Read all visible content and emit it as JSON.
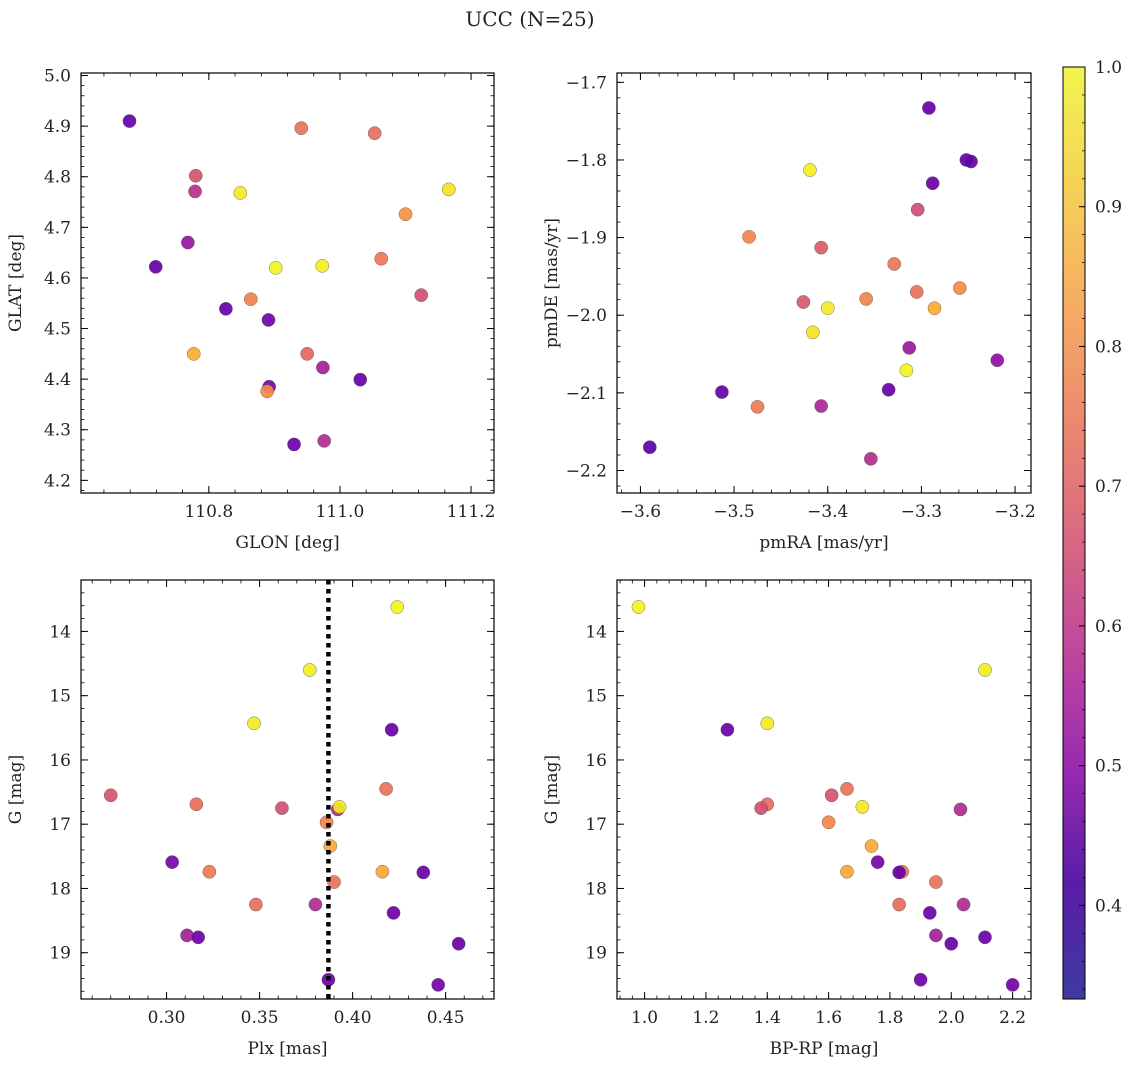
{
  "title": "UCC (N=25)",
  "colorbar": {
    "ticks": [
      "0.4",
      "0.5",
      "0.6",
      "0.7",
      "0.8",
      "0.9",
      "1.0"
    ],
    "tick_values": [
      0.4,
      0.5,
      0.6,
      0.7,
      0.8,
      0.9,
      1.0
    ],
    "range": [
      0.333,
      1.0
    ],
    "colormap": "plasma"
  },
  "chart_data": [
    {
      "type": "scatter",
      "xlabel": "GLON [deg]",
      "ylabel": "GLAT [deg]",
      "xlim": [
        110.605,
        111.235
      ],
      "ylim": [
        4.175,
        5.005
      ],
      "y_inverted": false,
      "xticks": [
        110.8,
        111.0,
        111.2
      ],
      "xticklabels": [
        "110.8",
        "111.0",
        "111.2"
      ],
      "yticks": [
        4.2,
        4.3,
        4.4,
        4.5,
        4.6,
        4.7,
        4.8,
        4.9,
        5.0
      ],
      "yticklabels": [
        "4.2",
        "4.3",
        "4.4",
        "4.5",
        "4.6",
        "4.7",
        "4.8",
        "4.9",
        "5.0"
      ],
      "points": [
        {
          "x": 110.679,
          "y": 4.91,
          "c": 0.36
        },
        {
          "x": 110.941,
          "y": 4.896,
          "c": 0.72
        },
        {
          "x": 111.053,
          "y": 4.886,
          "c": 0.71
        },
        {
          "x": 110.78,
          "y": 4.802,
          "c": 0.64
        },
        {
          "x": 110.779,
          "y": 4.771,
          "c": 0.55
        },
        {
          "x": 110.848,
          "y": 4.768,
          "c": 0.97
        },
        {
          "x": 111.166,
          "y": 4.775,
          "c": 0.96
        },
        {
          "x": 111.1,
          "y": 4.726,
          "c": 0.8
        },
        {
          "x": 110.768,
          "y": 4.67,
          "c": 0.47
        },
        {
          "x": 110.719,
          "y": 4.622,
          "c": 0.36
        },
        {
          "x": 110.902,
          "y": 4.62,
          "c": 0.99
        },
        {
          "x": 110.973,
          "y": 4.624,
          "c": 0.98
        },
        {
          "x": 111.063,
          "y": 4.638,
          "c": 0.73
        },
        {
          "x": 111.124,
          "y": 4.566,
          "c": 0.63
        },
        {
          "x": 110.864,
          "y": 4.558,
          "c": 0.76
        },
        {
          "x": 110.826,
          "y": 4.539,
          "c": 0.37
        },
        {
          "x": 110.891,
          "y": 4.517,
          "c": 0.39
        },
        {
          "x": 110.777,
          "y": 4.45,
          "c": 0.85
        },
        {
          "x": 110.95,
          "y": 4.45,
          "c": 0.69
        },
        {
          "x": 110.974,
          "y": 4.423,
          "c": 0.5
        },
        {
          "x": 111.031,
          "y": 4.399,
          "c": 0.37
        },
        {
          "x": 110.892,
          "y": 4.385,
          "c": 0.4
        },
        {
          "x": 110.889,
          "y": 4.376,
          "c": 0.78
        },
        {
          "x": 110.93,
          "y": 4.271,
          "c": 0.38
        },
        {
          "x": 110.976,
          "y": 4.278,
          "c": 0.53
        }
      ]
    },
    {
      "type": "scatter",
      "xlabel": "pmRA [mas/yr]",
      "ylabel": "pmDE [mas/yr]",
      "xlim": [
        -3.625,
        -3.183
      ],
      "ylim": [
        -2.229,
        -1.688
      ],
      "y_inverted": false,
      "xticks": [
        -3.6,
        -3.5,
        -3.4,
        -3.3,
        -3.2
      ],
      "xticklabels": [
        "−3.6",
        "−3.5",
        "−3.4",
        "−3.3",
        "−3.2"
      ],
      "yticks": [
        -2.2,
        -2.1,
        -2.0,
        -1.9,
        -1.8,
        -1.7
      ],
      "yticklabels": [
        "−2.2",
        "−2.1",
        "−2.0",
        "−1.9",
        "−1.8",
        "−1.7"
      ],
      "points": [
        {
          "x": -3.292,
          "y": -1.733,
          "c": 0.37
        },
        {
          "x": -3.252,
          "y": -1.8,
          "c": 0.36
        },
        {
          "x": -3.247,
          "y": -1.802,
          "c": 0.36
        },
        {
          "x": -3.419,
          "y": -1.813,
          "c": 0.98
        },
        {
          "x": -3.288,
          "y": -1.83,
          "c": 0.38
        },
        {
          "x": -3.304,
          "y": -1.864,
          "c": 0.62
        },
        {
          "x": -3.484,
          "y": -1.899,
          "c": 0.77
        },
        {
          "x": -3.407,
          "y": -1.913,
          "c": 0.66
        },
        {
          "x": -3.329,
          "y": -1.934,
          "c": 0.73
        },
        {
          "x": -3.426,
          "y": -1.983,
          "c": 0.65
        },
        {
          "x": -3.359,
          "y": -1.979,
          "c": 0.76
        },
        {
          "x": -3.4,
          "y": -1.991,
          "c": 0.97
        },
        {
          "x": -3.305,
          "y": -1.97,
          "c": 0.72
        },
        {
          "x": -3.259,
          "y": -1.965,
          "c": 0.78
        },
        {
          "x": -3.286,
          "y": -1.991,
          "c": 0.85
        },
        {
          "x": -3.416,
          "y": -2.022,
          "c": 0.96
        },
        {
          "x": -3.313,
          "y": -2.042,
          "c": 0.48
        },
        {
          "x": -3.316,
          "y": -2.071,
          "c": 0.99
        },
        {
          "x": -3.219,
          "y": -2.058,
          "c": 0.45
        },
        {
          "x": -3.335,
          "y": -2.096,
          "c": 0.37
        },
        {
          "x": -3.513,
          "y": -2.099,
          "c": 0.36
        },
        {
          "x": -3.475,
          "y": -2.118,
          "c": 0.74
        },
        {
          "x": -3.407,
          "y": -2.117,
          "c": 0.52
        },
        {
          "x": -3.59,
          "y": -2.17,
          "c": 0.35
        },
        {
          "x": -3.354,
          "y": -2.185,
          "c": 0.54
        }
      ]
    },
    {
      "type": "scatter",
      "xlabel": "Plx [mas]",
      "ylabel": "G [mag]",
      "xlim": [
        0.254,
        0.476
      ],
      "ylim": [
        19.72,
        13.2
      ],
      "y_inverted": true,
      "xticks": [
        0.3,
        0.35,
        0.4,
        0.45
      ],
      "xticklabels": [
        "0.30",
        "0.35",
        "0.40",
        "0.45"
      ],
      "yticks": [
        14,
        15,
        16,
        17,
        18,
        19
      ],
      "yticklabels": [
        "14",
        "15",
        "16",
        "17",
        "18",
        "19"
      ],
      "vline": {
        "x": 0.387,
        "style": "dotted",
        "color": "#000000"
      },
      "points": [
        {
          "x": 0.424,
          "y": 13.62,
          "c": 0.99
        },
        {
          "x": 0.377,
          "y": 14.6,
          "c": 0.98
        },
        {
          "x": 0.347,
          "y": 15.43,
          "c": 0.97
        },
        {
          "x": 0.421,
          "y": 15.53,
          "c": 0.37
        },
        {
          "x": 0.27,
          "y": 16.55,
          "c": 0.64
        },
        {
          "x": 0.418,
          "y": 16.45,
          "c": 0.72
        },
        {
          "x": 0.316,
          "y": 16.69,
          "c": 0.71
        },
        {
          "x": 0.362,
          "y": 16.75,
          "c": 0.63
        },
        {
          "x": 0.392,
          "y": 16.77,
          "c": 0.53
        },
        {
          "x": 0.393,
          "y": 16.73,
          "c": 0.97
        },
        {
          "x": 0.386,
          "y": 16.97,
          "c": 0.77
        },
        {
          "x": 0.388,
          "y": 17.34,
          "c": 0.85
        },
        {
          "x": 0.303,
          "y": 17.59,
          "c": 0.4
        },
        {
          "x": 0.323,
          "y": 17.74,
          "c": 0.74
        },
        {
          "x": 0.416,
          "y": 17.74,
          "c": 0.84
        },
        {
          "x": 0.438,
          "y": 17.75,
          "c": 0.37
        },
        {
          "x": 0.39,
          "y": 17.9,
          "c": 0.72
        },
        {
          "x": 0.348,
          "y": 18.25,
          "c": 0.71
        },
        {
          "x": 0.38,
          "y": 18.25,
          "c": 0.53
        },
        {
          "x": 0.422,
          "y": 18.38,
          "c": 0.38
        },
        {
          "x": 0.311,
          "y": 18.73,
          "c": 0.5
        },
        {
          "x": 0.317,
          "y": 18.76,
          "c": 0.38
        },
        {
          "x": 0.457,
          "y": 18.86,
          "c": 0.37
        },
        {
          "x": 0.387,
          "y": 19.42,
          "c": 0.38
        },
        {
          "x": 0.446,
          "y": 19.5,
          "c": 0.39
        }
      ]
    },
    {
      "type": "scatter",
      "xlabel": "BP-RP [mag]",
      "ylabel": "G [mag]",
      "xlim": [
        0.91,
        2.26
      ],
      "ylim": [
        19.72,
        13.2
      ],
      "y_inverted": true,
      "xticks": [
        1.0,
        1.2,
        1.4,
        1.6,
        1.8,
        2.0,
        2.2
      ],
      "xticklabels": [
        "1.0",
        "1.2",
        "1.4",
        "1.6",
        "1.8",
        "2.0",
        "2.2"
      ],
      "yticks": [
        14,
        15,
        16,
        17,
        18,
        19
      ],
      "yticklabels": [
        "14",
        "15",
        "16",
        "17",
        "18",
        "19"
      ],
      "points": [
        {
          "x": 0.98,
          "y": 13.62,
          "c": 0.99
        },
        {
          "x": 2.11,
          "y": 14.6,
          "c": 0.98
        },
        {
          "x": 1.4,
          "y": 15.43,
          "c": 0.97
        },
        {
          "x": 1.27,
          "y": 15.53,
          "c": 0.37
        },
        {
          "x": 1.61,
          "y": 16.55,
          "c": 0.64
        },
        {
          "x": 1.66,
          "y": 16.45,
          "c": 0.72
        },
        {
          "x": 1.4,
          "y": 16.69,
          "c": 0.71
        },
        {
          "x": 1.38,
          "y": 16.75,
          "c": 0.63
        },
        {
          "x": 2.03,
          "y": 16.77,
          "c": 0.53
        },
        {
          "x": 1.71,
          "y": 16.73,
          "c": 0.97
        },
        {
          "x": 1.6,
          "y": 16.97,
          "c": 0.77
        },
        {
          "x": 1.74,
          "y": 17.34,
          "c": 0.85
        },
        {
          "x": 1.76,
          "y": 17.59,
          "c": 0.4
        },
        {
          "x": 1.84,
          "y": 17.74,
          "c": 0.74
        },
        {
          "x": 1.66,
          "y": 17.74,
          "c": 0.84
        },
        {
          "x": 1.83,
          "y": 17.75,
          "c": 0.37
        },
        {
          "x": 1.95,
          "y": 17.9,
          "c": 0.72
        },
        {
          "x": 1.83,
          "y": 18.25,
          "c": 0.71
        },
        {
          "x": 2.04,
          "y": 18.25,
          "c": 0.53
        },
        {
          "x": 1.93,
          "y": 18.38,
          "c": 0.38
        },
        {
          "x": 1.95,
          "y": 18.73,
          "c": 0.5
        },
        {
          "x": 2.11,
          "y": 18.76,
          "c": 0.38
        },
        {
          "x": 2.0,
          "y": 18.86,
          "c": 0.37
        },
        {
          "x": 1.9,
          "y": 19.42,
          "c": 0.38
        },
        {
          "x": 2.2,
          "y": 19.5,
          "c": 0.39
        }
      ]
    }
  ]
}
